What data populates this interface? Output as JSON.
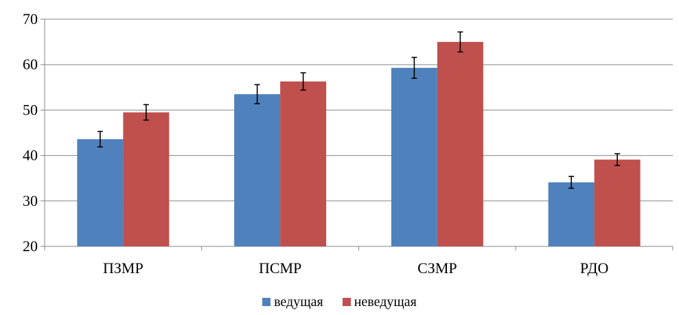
{
  "chart_data": {
    "type": "bar",
    "categories": [
      "ПЗМР",
      "ПСМР",
      "СЗМР",
      "РДО"
    ],
    "series": [
      {
        "name": "ведущая",
        "color": "#4F81BD",
        "values": [
          43.6,
          53.5,
          59.3,
          34.1
        ],
        "errors": [
          1.7,
          2.1,
          2.3,
          1.3
        ]
      },
      {
        "name": "неведущая",
        "color": "#C0504D",
        "values": [
          49.5,
          56.3,
          65.0,
          39.1
        ],
        "errors": [
          1.7,
          1.9,
          2.2,
          1.3
        ]
      }
    ],
    "ylim": [
      20,
      70
    ],
    "yticks": [
      20,
      30,
      40,
      50,
      60,
      70
    ],
    "title": "",
    "xlabel": "",
    "ylabel": "",
    "grid": true,
    "legend": "bottom"
  }
}
